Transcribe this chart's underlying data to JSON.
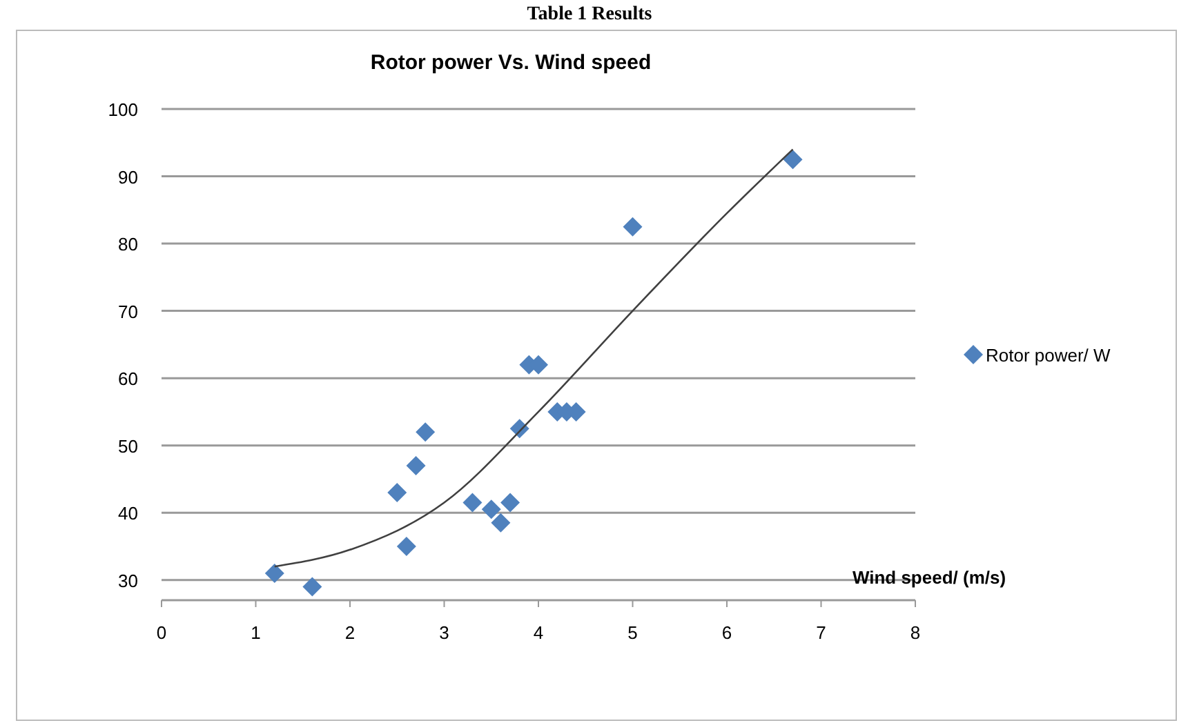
{
  "chart_data": {
    "type": "scatter",
    "title": "Rotor power Vs. Wind speed",
    "xlabel": "Wind speed/ (m/s)",
    "annotations": [
      "Table 1  Results"
    ],
    "series": [
      {
        "name": "Rotor power/ W",
        "color": "#4f81bd",
        "marker": "diamond",
        "x": [
          1.2,
          1.6,
          2.5,
          2.6,
          2.7,
          2.8,
          3.3,
          3.5,
          3.6,
          3.7,
          3.8,
          3.9,
          4.0,
          4.2,
          4.3,
          4.4,
          5.0,
          6.7
        ],
        "values": [
          31,
          29,
          43,
          35,
          47,
          52,
          41.5,
          40.5,
          38.5,
          41.5,
          52.5,
          62,
          62,
          55,
          55,
          55,
          82.5,
          92.5
        ]
      },
      {
        "type": "line",
        "color": "#404040",
        "marker": "none",
        "x": [
          1.2,
          2,
          3,
          4,
          5,
          6,
          6.7
        ],
        "values": [
          32,
          34.5,
          41.5,
          55,
          70,
          84.5,
          94
        ]
      }
    ],
    "xlim": [
      0,
      8
    ],
    "xticks": [
      0,
      1,
      2,
      3,
      4,
      5,
      6,
      7,
      8
    ],
    "ylim": [
      27,
      100
    ],
    "yticks": [
      30,
      40,
      50,
      60,
      70,
      80,
      90,
      100
    ],
    "grid": "y",
    "legend": "right"
  }
}
